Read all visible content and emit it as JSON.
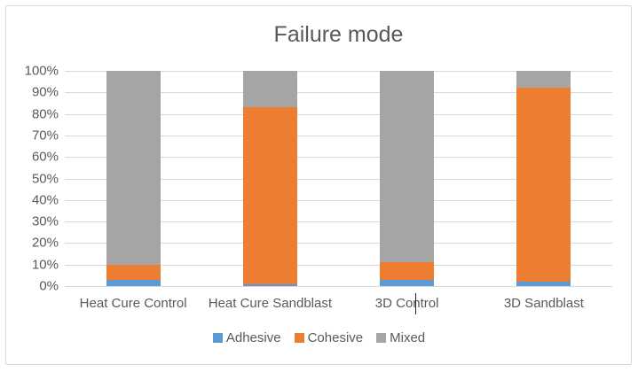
{
  "chart_data": {
    "type": "bar",
    "stacked": true,
    "orientation": "vertical",
    "title": "Failure mode",
    "categories": [
      "Heat Cure Control",
      "Heat Cure Sandblast",
      "3D Control",
      "3D Sandblast"
    ],
    "series": [
      {
        "name": "Adhesive",
        "color": "#5B9BD5",
        "values": [
          3,
          1,
          3,
          2
        ]
      },
      {
        "name": "Cohesive",
        "color": "#ED7D31",
        "values": [
          7,
          82,
          8,
          90
        ]
      },
      {
        "name": "Mixed",
        "color": "#A5A5A5",
        "values": [
          90,
          17,
          89,
          8
        ]
      }
    ],
    "y_axis": {
      "min": 0,
      "max": 100,
      "step": 10,
      "unit": "%",
      "tick_labels": [
        "0%",
        "10%",
        "20%",
        "30%",
        "40%",
        "50%",
        "60%",
        "70%",
        "80%",
        "90%",
        "100%"
      ]
    },
    "grid": true,
    "legend_position": "bottom"
  },
  "style": {
    "text_color": "#595959",
    "gridline_color": "#D9D9D9",
    "border_color": "#D9D9D9",
    "background_color": "#FFFFFF"
  },
  "artifacts": {
    "text_cursor": {
      "over_label": "3D Control"
    }
  }
}
